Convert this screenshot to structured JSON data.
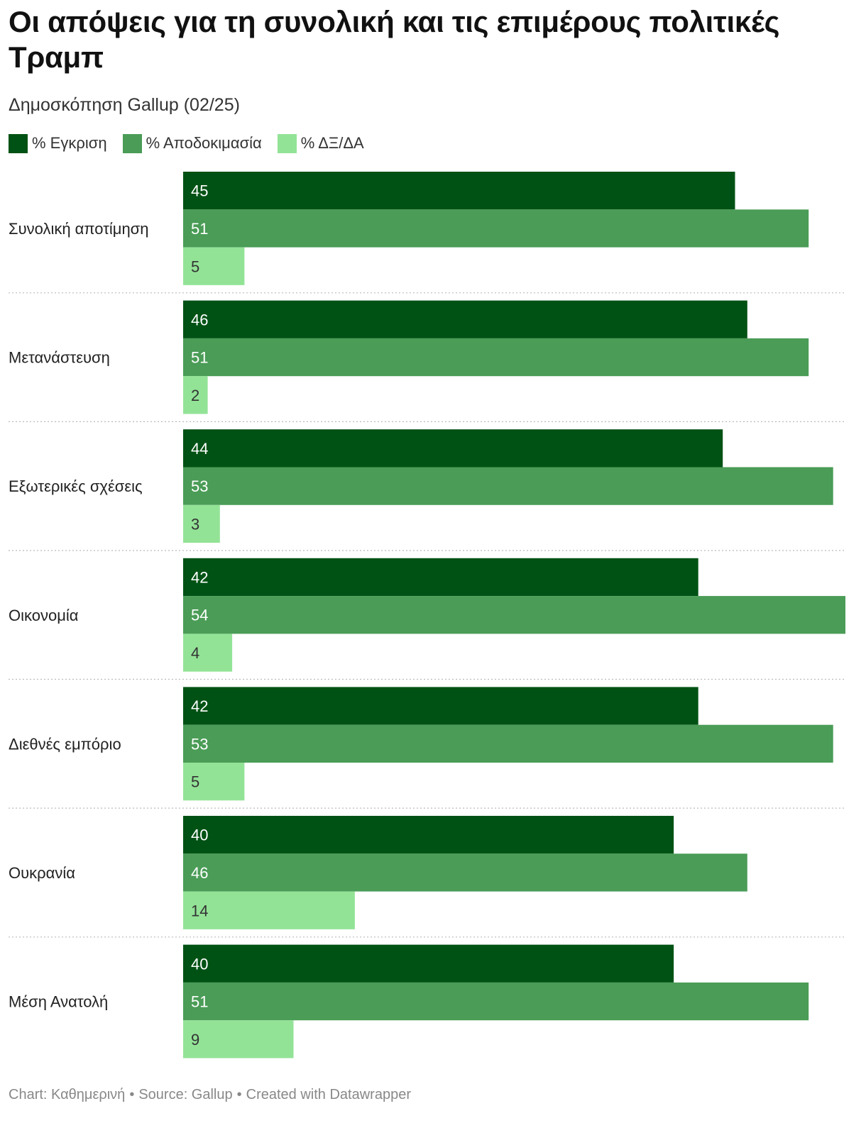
{
  "header": {
    "title": "Οι απόψεις για τη συνολική και τις επιμέρους πολιτικές Τραμπ",
    "subtitle": "Δημοσκόπηση Gallup (02/25)"
  },
  "legend": [
    {
      "label": "% Εγκριση",
      "color": "#005214"
    },
    {
      "label": "% Αποδοκιμασία",
      "color": "#4a9c56"
    },
    {
      "label": "% ΔΞ/ΔΑ",
      "color": "#93e397"
    }
  ],
  "chart_data": {
    "type": "bar",
    "orientation": "horizontal-grouped",
    "title": "Οι απόψεις για τη συνολική και τις επιμέρους πολιτικές Τραμπ",
    "subtitle": "Δημοσκόπηση Gallup (02/25)",
    "categories": [
      "Συνολική αποτίμηση",
      "Μετανάστευση",
      "Εξωτερικές σχέσεις",
      "Οικονομία",
      "Διεθνές εμπόριο",
      "Ουκρανία",
      "Μέση Ανατολή"
    ],
    "series": [
      {
        "name": "% Εγκριση",
        "color": "#005214",
        "label_color": "#ffffff",
        "values": [
          45,
          46,
          44,
          42,
          42,
          40,
          40
        ]
      },
      {
        "name": "% Αποδοκιμασία",
        "color": "#4a9c56",
        "label_color": "#ffffff",
        "values": [
          51,
          51,
          53,
          54,
          53,
          46,
          51
        ]
      },
      {
        "name": "% ΔΞ/ΔΑ",
        "color": "#93e397",
        "label_color": "#333333",
        "values": [
          5,
          2,
          3,
          4,
          5,
          14,
          9
        ]
      }
    ],
    "xlim": [
      0,
      54
    ],
    "grid": false,
    "legend_position": "top-left"
  },
  "footer": {
    "chart_credit": "Chart: Καθημερινή",
    "source": "Source: Gallup",
    "created": "Created with Datawrapper",
    "separator": "•"
  }
}
